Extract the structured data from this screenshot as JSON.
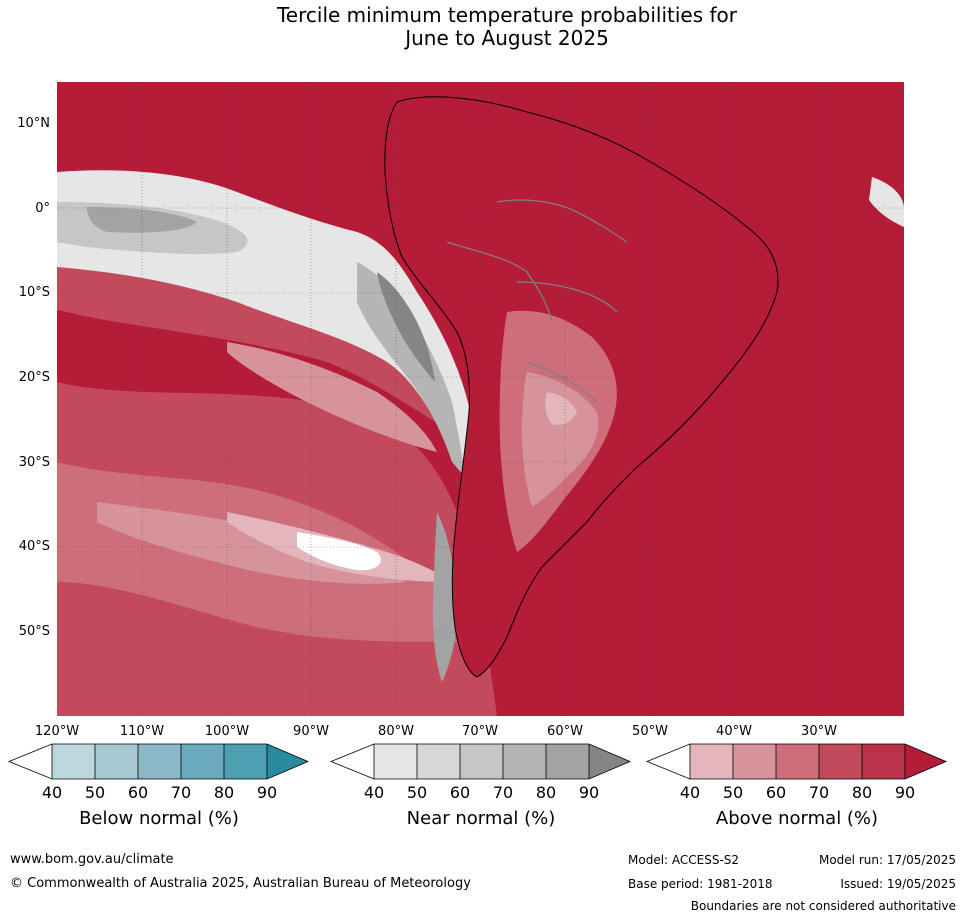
{
  "title": {
    "line1": "Tercile minimum temperature probabilities for",
    "line2": "June to August 2025"
  },
  "map": {
    "lat_labels": [
      "10°N",
      "0°",
      "10°S",
      "20°S",
      "30°S",
      "40°S",
      "50°S"
    ],
    "lon_labels": [
      "120°W",
      "110°W",
      "100°W",
      "90°W",
      "80°W",
      "70°W",
      "60°W",
      "50°W",
      "40°W",
      "30°W"
    ],
    "dominant_category": "Above normal",
    "colors": {
      "above_90": "#b41c38",
      "above_80": "#c34a5c",
      "above_70": "#cd6e7a",
      "above_60": "#d7939b",
      "above_50": "#e2b6bb",
      "near_90": "#858585",
      "near_80": "#a3a3a3",
      "near_70": "#b5b5b5",
      "near_60": "#c6c6c6",
      "near_50": "#d7d7d7",
      "near_40": "#e6e6e6",
      "coast": "#000000",
      "border": "#808080"
    }
  },
  "legend": {
    "below": {
      "label": "Below normal (%)",
      "ticks": [
        "40",
        "50",
        "60",
        "70",
        "80",
        "90"
      ],
      "colors": [
        "#ffffff",
        "#bed6dd",
        "#a6c8d1",
        "#8ab8c6",
        "#6aaabc",
        "#4ca0b2",
        "#2a8aa0"
      ]
    },
    "near": {
      "label": "Near normal (%)",
      "ticks": [
        "40",
        "50",
        "60",
        "70",
        "80",
        "90"
      ],
      "colors": [
        "#ffffff",
        "#e6e6e6",
        "#d7d7d7",
        "#c6c6c6",
        "#b5b5b5",
        "#a3a3a3",
        "#858585"
      ]
    },
    "above": {
      "label": "Above normal (%)",
      "ticks": [
        "40",
        "50",
        "60",
        "70",
        "80",
        "90"
      ],
      "colors": [
        "#ffffff",
        "#e2b6bb",
        "#d7939b",
        "#cd6e7a",
        "#c34a5c",
        "#b8334b",
        "#b41c38"
      ]
    }
  },
  "footer": {
    "website": "www.bom.gov.au/climate",
    "copyright": "© Commonwealth of Australia 2025, Australian Bureau of Meteorology",
    "model": "Model: ACCESS-S2",
    "base_period": "Base period: 1981-2018",
    "model_run": "Model run: 17/05/2025",
    "issued": "Issued: 19/05/2025",
    "disclaimer": "Boundaries are not considered authoritative"
  }
}
